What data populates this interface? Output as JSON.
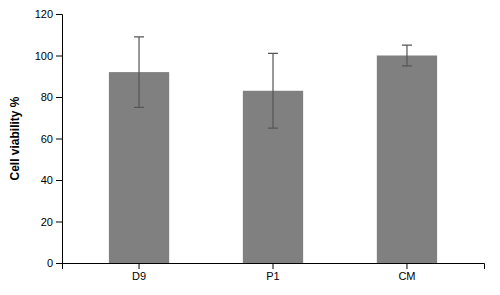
{
  "chart_data": {
    "type": "bar",
    "categories": [
      "D9",
      "P1",
      "CM"
    ],
    "values": [
      92,
      83,
      100
    ],
    "errors": [
      17,
      18,
      5
    ],
    "color": "#808080",
    "ylabel": "Cell viability %",
    "ylim": [
      0,
      120
    ],
    "yticks": [
      0,
      20,
      40,
      60,
      80,
      100,
      120
    ],
    "grid": false
  }
}
